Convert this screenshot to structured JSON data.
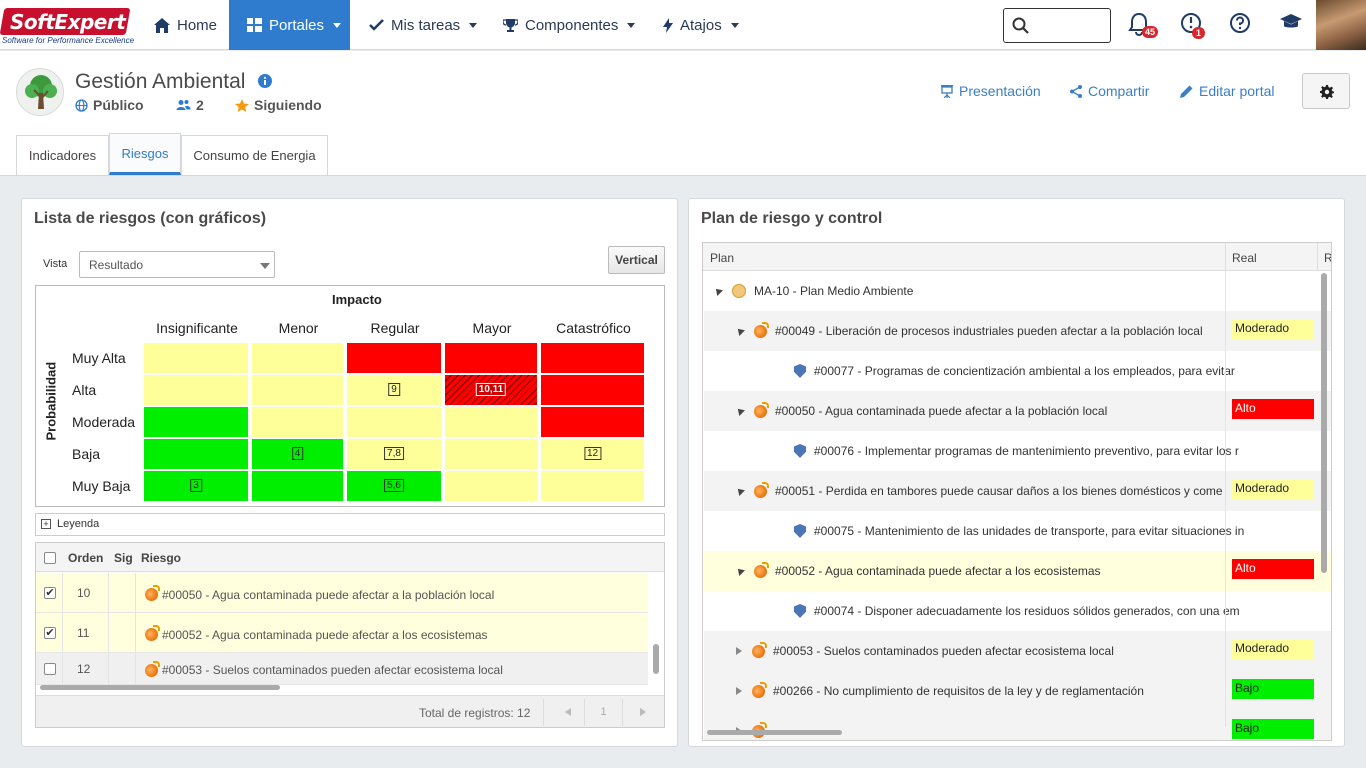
{
  "brand": {
    "name": "SoftExpert",
    "tagline": "Software for Performance Excellence"
  },
  "nav": {
    "items": [
      {
        "label": "Home",
        "icon": "home-icon"
      },
      {
        "label": "Portales",
        "icon": "grid-icon"
      },
      {
        "label": "Mis tareas",
        "icon": "check-icon"
      },
      {
        "label": "Componentes",
        "icon": "trophy-icon"
      },
      {
        "label": "Atajos",
        "icon": "bolt-icon"
      }
    ],
    "search_placeholder": "",
    "notifications_count": "45",
    "tasks_count": "1"
  },
  "portal": {
    "title": "Gestión Ambiental",
    "visibility": "Público",
    "members": "2",
    "following": "Siguiendo",
    "actions": {
      "presentation": "Presentación",
      "share": "Compartir",
      "edit": "Editar portal"
    }
  },
  "tabs": [
    {
      "label": "Indicadores",
      "active": false
    },
    {
      "label": "Riesgos",
      "active": true
    },
    {
      "label": "Consumo de Energia",
      "active": false
    }
  ],
  "risk_list": {
    "title": "Lista de riesgos (con gráficos)",
    "view_label": "Vista",
    "view_value": "Resultado",
    "vertical_button": "Vertical",
    "matrix": {
      "impact_label": "Impacto",
      "probability_label": "Probabilidad",
      "impact_levels": [
        "Insignificante",
        "Menor",
        "Regular",
        "Mayor",
        "Catastrófico"
      ],
      "probability_levels": [
        "Muy Alta",
        "Alta",
        "Moderada",
        "Baja",
        "Muy Baja"
      ],
      "colors": {
        "green": "#00ee00",
        "yellow": "#ffff99",
        "red": "#ff0000"
      },
      "grid": [
        [
          "yellow",
          "yellow",
          "red",
          "red",
          "red"
        ],
        [
          "yellow",
          "yellow",
          "yellow",
          "red-hatched",
          "red"
        ],
        [
          "green",
          "yellow",
          "yellow",
          "yellow",
          "red"
        ],
        [
          "green",
          "green",
          "yellow",
          "yellow",
          "yellow"
        ],
        [
          "green",
          "green",
          "green",
          "yellow",
          "yellow"
        ]
      ],
      "markers": [
        {
          "row": 1,
          "col": 2,
          "label": "9"
        },
        {
          "row": 1,
          "col": 3,
          "label": "10,11"
        },
        {
          "row": 3,
          "col": 1,
          "label": "4"
        },
        {
          "row": 3,
          "col": 2,
          "label": "7,8"
        },
        {
          "row": 3,
          "col": 4,
          "label": "12"
        },
        {
          "row": 4,
          "col": 0,
          "label": "3"
        },
        {
          "row": 4,
          "col": 2,
          "label": "5,6"
        }
      ]
    },
    "legend_label": "Leyenda",
    "columns": [
      "Orden",
      "Sig",
      "Riesgo"
    ],
    "rows": [
      {
        "order": "10",
        "checked": true,
        "risk": "#00050 - Agua contaminada puede afectar a la población local"
      },
      {
        "order": "11",
        "checked": true,
        "risk": "#00052 - Agua contaminada puede afectar a los ecosistemas"
      },
      {
        "order": "12",
        "checked": false,
        "risk": "#00053 - Suelos contaminados pueden afectar ecosistema local"
      }
    ],
    "total_label": "Total de registros: 12",
    "page": "1"
  },
  "plan": {
    "title": "Plan de riesgo y control",
    "columns": [
      "Plan",
      "Real",
      "R"
    ],
    "colors": {
      "Moderado": "#ffff99",
      "Alto": "#ff0000",
      "Bajo": "#00ee00"
    },
    "rows": [
      {
        "level": 0,
        "kind": "plan",
        "text": "MA-10 - Plan Medio Ambiente",
        "status": ""
      },
      {
        "level": 1,
        "kind": "risk",
        "text": "#00049 - Liberación de procesos industriales pueden afectar a la población local",
        "status": "Moderado"
      },
      {
        "level": 2,
        "kind": "control",
        "text": "#00077 - Programas de concientización ambiental a los empleados, para evitar",
        "status": ""
      },
      {
        "level": 1,
        "kind": "risk",
        "text": "#00050 - Agua contaminada puede afectar a la población local",
        "status": "Alto"
      },
      {
        "level": 2,
        "kind": "control",
        "text": "#00076 - Implementar programas de mantenimiento preventivo, para evitar los r",
        "status": ""
      },
      {
        "level": 1,
        "kind": "risk",
        "text": "#00051 - Perdida en tambores puede causar daños a los bienes domésticos y come",
        "status": "Moderado"
      },
      {
        "level": 2,
        "kind": "control",
        "text": "#00075 - Mantenimiento de las unidades de transporte, para evitar situaciones in",
        "status": ""
      },
      {
        "level": 1,
        "kind": "risk",
        "text": "#00052 - Agua contaminada puede afectar a los ecosistemas",
        "status": "Alto",
        "highlight": true
      },
      {
        "level": 2,
        "kind": "control",
        "text": "#00074 - Disponer adecuadamente los residuos sólidos generados, con una em",
        "status": ""
      },
      {
        "level": 1,
        "kind": "risk-collapsed",
        "text": "#00053 - Suelos contaminados pueden afectar ecosistema local",
        "status": "Moderado"
      },
      {
        "level": 1,
        "kind": "risk-collapsed",
        "text": "#00266 - No cumplimiento de requisitos de la ley y de reglamentación",
        "status": "Bajo"
      },
      {
        "level": 1,
        "kind": "risk-collapsed",
        "text": "",
        "status": "Bajo"
      }
    ]
  }
}
